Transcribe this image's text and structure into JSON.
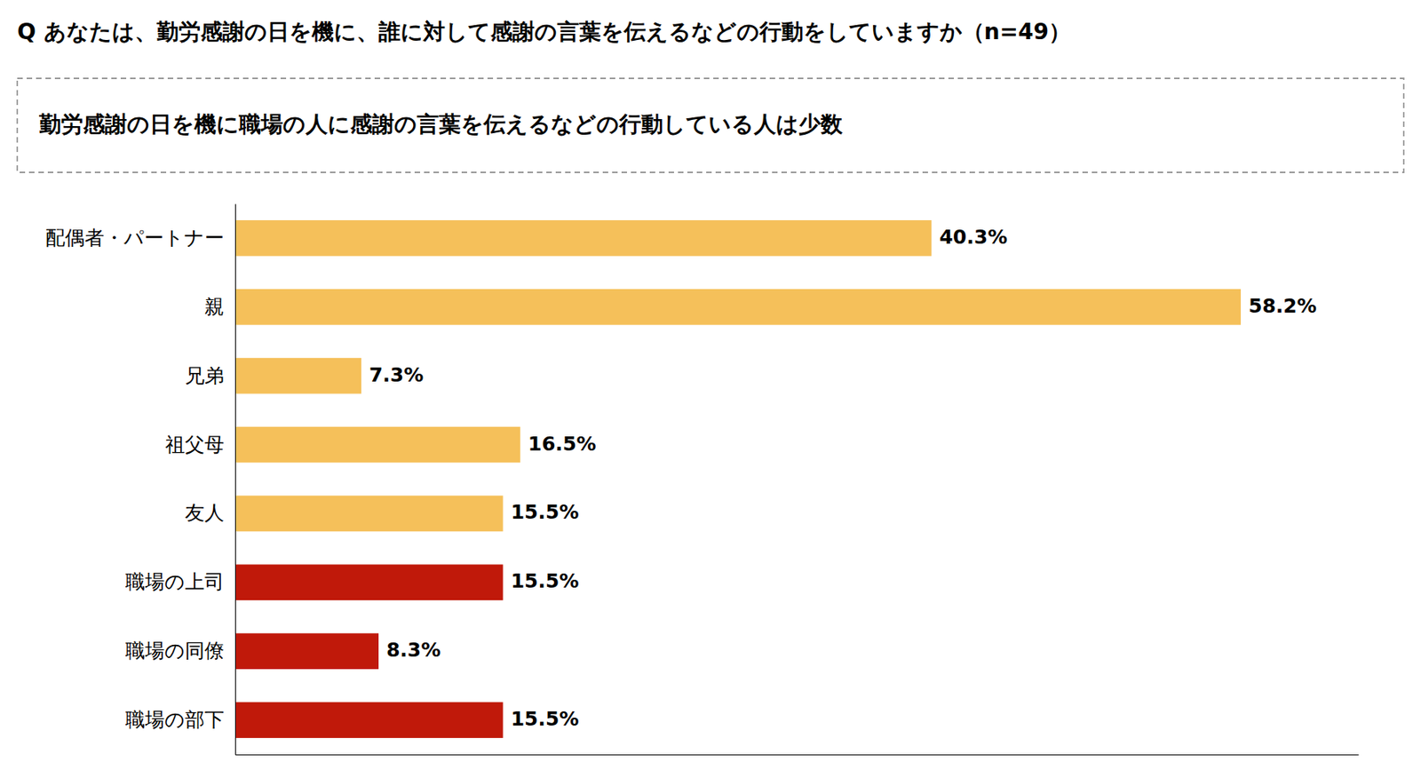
{
  "chart_data": {
    "type": "bar",
    "orientation": "horizontal",
    "title": "Q あなたは、勤労感謝の日を機に、誰に対して感謝の言葉を伝えるなどの行動をしていますか（n=49）",
    "subtitle": "勤労感謝の日を機に職場の人に感謝の言葉を伝えるなどの行動している人は少数",
    "categories": [
      "配偶者・パートナー",
      "親",
      "兄弟",
      "祖父母",
      "友人",
      "職場の上司",
      "職場の同僚",
      "職場の部下"
    ],
    "values": [
      40.3,
      58.2,
      7.3,
      16.5,
      15.5,
      15.5,
      8.3,
      15.5
    ],
    "value_labels": [
      "40.3%",
      "58.2%",
      "7.3%",
      "16.5%",
      "15.5%",
      "15.5%",
      "8.3%",
      "15.5%"
    ],
    "colors": [
      "#F5C05A",
      "#F5C05A",
      "#F5C05A",
      "#F5C05A",
      "#F5C05A",
      "#C0190A",
      "#C0190A",
      "#C0190A"
    ],
    "xlim": [
      0,
      65
    ],
    "data_labels": true,
    "tick_labels": "y",
    "grid": false
  }
}
